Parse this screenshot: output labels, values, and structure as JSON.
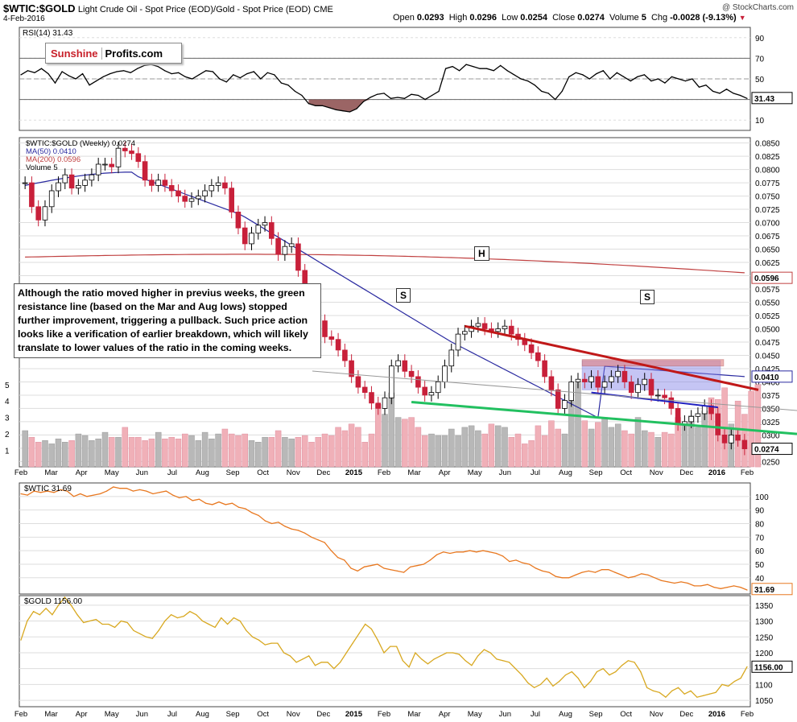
{
  "header": {
    "symbol": "$WTIC:$GOLD",
    "description": "Light Crude Oil - Spot Price (EOD)/Gold - Spot Price (EOD)",
    "exchange": "CME",
    "date": "4-Feb-2016",
    "copyright": "@ StockCharts.com"
  },
  "ohlc": {
    "open_label": "Open",
    "open": "0.0293",
    "high_label": "High",
    "high": "0.0296",
    "low_label": "Low",
    "low": "0.0254",
    "close_label": "Close",
    "close": "0.0274",
    "volume_label": "Volume",
    "volume": "5",
    "chg_label": "Chg",
    "chg": "-0.0028 (-9.13%)"
  },
  "logo": {
    "part1": "Sunshine",
    "part2": "Profits.com"
  },
  "annotation": "Although the ratio moved higher in previus weeks, the green resistance line (based on the Mar and Aug lows) stopped further improvement, triggering a pullback. Such price action looks like a verification of earlier breakdown, which will likely translate to lower values of the ratio in the coming weeks.",
  "pattern_labels": {
    "left_shoulder": "S",
    "head": "H",
    "right_shoulder": "S"
  },
  "colors": {
    "up": "#ffffff",
    "down": "#c8203a",
    "ma50": "#2a2aa0",
    "ma200": "#c04040",
    "rsi_fill": "#8a4a4a",
    "resistance": "#22c060",
    "trend_red": "#c01818",
    "wtic": "#e87820",
    "gold": "#d8a820",
    "box": "#8080e8",
    "box_top": "#e08080"
  },
  "chart_data": [
    {
      "type": "line",
      "name": "rsi",
      "legend": "RSI(14) 31.43",
      "last_label": "31.43",
      "ylim": [
        0,
        100
      ],
      "y_ticks": [
        "90",
        "70",
        "50",
        "30",
        "10"
      ],
      "y_tick_values": [
        90,
        70,
        50,
        30,
        10
      ],
      "values": [
        54,
        58,
        56,
        60,
        55,
        46,
        57,
        53,
        50,
        55,
        44,
        48,
        52,
        55,
        57,
        58,
        56,
        60,
        63,
        64,
        62,
        58,
        55,
        56,
        52,
        50,
        54,
        58,
        57,
        50,
        47,
        54,
        51,
        55,
        57,
        50,
        56,
        54,
        46,
        44,
        38,
        34,
        26,
        24,
        24,
        22,
        20,
        19,
        18,
        21,
        28,
        32,
        35,
        36,
        31,
        32,
        31,
        35,
        34,
        30,
        34,
        38,
        60,
        62,
        58,
        64,
        62,
        60,
        60,
        58,
        63,
        58,
        54,
        50,
        48,
        44,
        38,
        36,
        30,
        38,
        52,
        56,
        54,
        50,
        55,
        58,
        50,
        56,
        52,
        48,
        52,
        54,
        48,
        50,
        46,
        52,
        50,
        48,
        50,
        42,
        44,
        38,
        36,
        40,
        36,
        34,
        31
      ]
    },
    {
      "type": "candlestick",
      "name": "ratio",
      "legend_main": "$WTIC:$GOLD (Weekly) 0.0274",
      "legend_ma50": "MA(50) 0.0410",
      "legend_ma200": "MA(200) 0.0596",
      "legend_vol": "Volume 5",
      "ylim": [
        0.024,
        0.086
      ],
      "y_ticks": [
        "0.0850",
        "0.0825",
        "0.0800",
        "0.0775",
        "0.0750",
        "0.0725",
        "0.0700",
        "0.0675",
        "0.0650",
        "0.0625",
        "0.0600",
        "0.0575",
        "0.0550",
        "0.0525",
        "0.0500",
        "0.0475",
        "0.0450",
        "0.0425",
        "0.0400",
        "0.0375",
        "0.0350",
        "0.0325",
        "0.0300",
        "0.0275",
        "0.0250"
      ],
      "y_tick_values": [
        0.085,
        0.0825,
        0.08,
        0.0775,
        0.075,
        0.0725,
        0.07,
        0.0675,
        0.065,
        0.0625,
        0.06,
        0.0575,
        0.055,
        0.0525,
        0.05,
        0.0475,
        0.045,
        0.0425,
        0.04,
        0.0375,
        0.035,
        0.0325,
        0.03,
        0.0275,
        0.025
      ],
      "last_labels": {
        "ma200": "0.0596",
        "ma50": "0.0410",
        "close": "0.0274"
      },
      "vol_ticks": [
        "5",
        "4",
        "3",
        "2",
        "1"
      ],
      "vol_tick_values": [
        5,
        4,
        3,
        2,
        1
      ],
      "closes": [
        0.0775,
        0.073,
        0.0705,
        0.073,
        0.076,
        0.0775,
        0.079,
        0.0765,
        0.077,
        0.078,
        0.079,
        0.081,
        0.081,
        0.0805,
        0.084,
        0.0835,
        0.083,
        0.0815,
        0.078,
        0.077,
        0.078,
        0.077,
        0.076,
        0.075,
        0.074,
        0.0745,
        0.075,
        0.076,
        0.077,
        0.0775,
        0.0765,
        0.072,
        0.069,
        0.066,
        0.068,
        0.0695,
        0.07,
        0.067,
        0.064,
        0.0655,
        0.066,
        0.061,
        0.056,
        0.0545,
        0.0515,
        0.0485,
        0.048,
        0.046,
        0.044,
        0.041,
        0.039,
        0.038,
        0.036,
        0.035,
        0.037,
        0.043,
        0.044,
        0.042,
        0.041,
        0.039,
        0.0375,
        0.038,
        0.04,
        0.043,
        0.046,
        0.049,
        0.0495,
        0.0505,
        0.051,
        0.05,
        0.0495,
        0.05,
        0.0505,
        0.049,
        0.048,
        0.047,
        0.0455,
        0.044,
        0.041,
        0.0385,
        0.035,
        0.0365,
        0.04,
        0.0405,
        0.04,
        0.041,
        0.039,
        0.04,
        0.041,
        0.042,
        0.04,
        0.038,
        0.0395,
        0.0405,
        0.0375,
        0.0375,
        0.037,
        0.035,
        0.032,
        0.0325,
        0.0335,
        0.034,
        0.0355,
        0.034,
        0.03,
        0.0285,
        0.03,
        0.029,
        0.0274
      ],
      "volumes": [
        2.2,
        1.8,
        1.5,
        1.6,
        1.4,
        1.7,
        1.5,
        1.6,
        2.0,
        1.9,
        1.6,
        1.7,
        2.1,
        1.8,
        1.8,
        2.4,
        1.8,
        1.8,
        1.6,
        1.7,
        2.1,
        1.7,
        1.8,
        1.7,
        2.0,
        1.9,
        1.6,
        2.1,
        1.7,
        2.0,
        2.3,
        2.0,
        1.9,
        2.0,
        1.6,
        1.5,
        1.8,
        1.8,
        2.2,
        1.8,
        1.7,
        1.8,
        1.9,
        1.5,
        1.8,
        2.0,
        1.9,
        2.4,
        2.2,
        2.6,
        2.4,
        1.5,
        2.0,
        3.8,
        3.2,
        4.5,
        3.0,
        2.9,
        3.0,
        2.4,
        1.9,
        2.0,
        1.9,
        1.9,
        2.3,
        1.9,
        2.4,
        2.5,
        2.2,
        2.0,
        2.6,
        2.5,
        2.4,
        1.8,
        2.0,
        1.4,
        1.6,
        2.5,
        1.9,
        2.8,
        2.3,
        2.0,
        4.0,
        5.1,
        2.8,
        2.3,
        2.7,
        3.0,
        2.4,
        2.6,
        2.2,
        2.0,
        3.0,
        2.2,
        2.1,
        1.8,
        2.1,
        2.0,
        3.0,
        2.6,
        3.1,
        2.4,
        3.4,
        4.2,
        4.1,
        4.8,
        2.6,
        4.0,
        3.2,
        4.6,
        5.0
      ]
    },
    {
      "type": "line",
      "name": "wtic",
      "legend": "$WTIC 31.69",
      "last_label": "31.69",
      "ylim": [
        28,
        110
      ],
      "y_ticks": [
        "100",
        "90",
        "80",
        "70",
        "60",
        "50",
        "40"
      ],
      "y_tick_values": [
        100,
        90,
        80,
        70,
        60,
        50,
        40
      ],
      "values": [
        102,
        101,
        104,
        103,
        104,
        103,
        105,
        104,
        100,
        102,
        100,
        101,
        102,
        104,
        107,
        106,
        106,
        104,
        105,
        104,
        102,
        103,
        104,
        101,
        99,
        100,
        97,
        98,
        95,
        94,
        96,
        94,
        95,
        92,
        91,
        88,
        86,
        82,
        80,
        81,
        78,
        76,
        75,
        73,
        70,
        68,
        66,
        60,
        55,
        53,
        47,
        45,
        48,
        49,
        50,
        47,
        46,
        45,
        44,
        48,
        49,
        50,
        53,
        57,
        59,
        58,
        59,
        59,
        60,
        59,
        60,
        59,
        58,
        56,
        52,
        53,
        51,
        50,
        47,
        45,
        44,
        41,
        40,
        40,
        42,
        44,
        45,
        44,
        46,
        46,
        44,
        42,
        40,
        41,
        43,
        42,
        40,
        38,
        37,
        36,
        37,
        36,
        34,
        34,
        35,
        33,
        32,
        33,
        34,
        33,
        31
      ]
    },
    {
      "type": "line",
      "name": "gold",
      "legend": "$GOLD 1156.00",
      "last_label": "1156.00",
      "ylim": [
        1030,
        1380
      ],
      "y_ticks": [
        "1350",
        "1300",
        "1250",
        "1200",
        "1150",
        "1100",
        "1050"
      ],
      "y_tick_values": [
        1350,
        1300,
        1250,
        1200,
        1150,
        1100,
        1050
      ],
      "values": [
        1240,
        1300,
        1330,
        1320,
        1340,
        1320,
        1350,
        1375,
        1350,
        1320,
        1295,
        1300,
        1305,
        1290,
        1290,
        1280,
        1300,
        1295,
        1270,
        1260,
        1250,
        1245,
        1270,
        1300,
        1320,
        1310,
        1315,
        1330,
        1320,
        1300,
        1290,
        1280,
        1310,
        1290,
        1310,
        1300,
        1270,
        1250,
        1240,
        1225,
        1230,
        1230,
        1200,
        1190,
        1170,
        1180,
        1190,
        1160,
        1170,
        1170,
        1150,
        1170,
        1200,
        1230,
        1260,
        1290,
        1275,
        1240,
        1200,
        1220,
        1220,
        1175,
        1155,
        1200,
        1180,
        1165,
        1180,
        1190,
        1200,
        1200,
        1195,
        1175,
        1160,
        1190,
        1210,
        1200,
        1180,
        1175,
        1170,
        1150,
        1130,
        1105,
        1090,
        1100,
        1120,
        1095,
        1110,
        1130,
        1140,
        1120,
        1090,
        1110,
        1140,
        1150,
        1130,
        1140,
        1160,
        1175,
        1170,
        1140,
        1090,
        1080,
        1075,
        1060,
        1080,
        1090,
        1070,
        1080,
        1060,
        1065,
        1070,
        1075,
        1100,
        1095,
        1110,
        1120,
        1156
      ],
      "x_labels": [
        "Feb",
        "Mar",
        "Apr",
        "May",
        "Jun",
        "Jul",
        "Aug",
        "Sep",
        "Oct",
        "Nov",
        "Dec",
        "2015",
        "Feb",
        "Mar",
        "Apr",
        "May",
        "Jun",
        "Jul",
        "Aug",
        "Sep",
        "Oct",
        "Nov",
        "Dec",
        "2016",
        "Feb"
      ]
    }
  ]
}
